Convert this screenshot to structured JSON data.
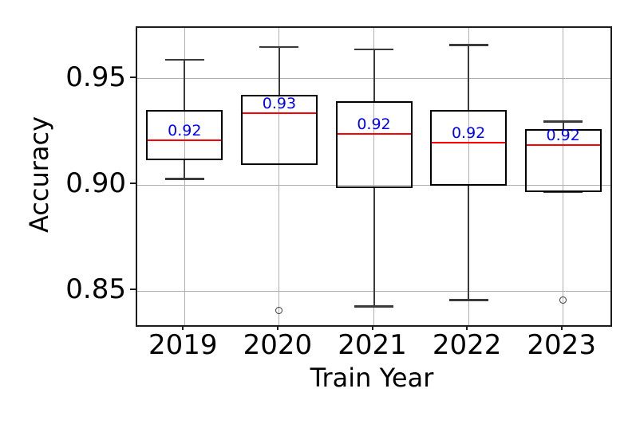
{
  "chart_data": {
    "type": "boxplot",
    "title": "",
    "xlabel": "Train Year",
    "ylabel": "Accuracy",
    "categories": [
      "2019",
      "2020",
      "2021",
      "2022",
      "2023"
    ],
    "ylim": [
      0.834,
      0.974
    ],
    "yticks": [
      {
        "value": 0.85,
        "label": "0.85"
      },
      {
        "value": 0.9,
        "label": "0.90"
      },
      {
        "value": 0.95,
        "label": "0.95"
      }
    ],
    "grid": true,
    "legend": "none",
    "colors": {
      "box_edge": "#000000",
      "median_line": "#ff0000",
      "median_label": "#0000ff",
      "whisker": "#3a3a3a",
      "gridline": "#b0b0b0",
      "spine": "#1c1c1c",
      "tick_label": "#000000",
      "background": "#ffffff"
    },
    "series": [
      {
        "category": "2019",
        "whisker_low": 0.903,
        "q1": 0.912,
        "median": 0.921,
        "q3": 0.935,
        "whisker_high": 0.959,
        "median_label": "0.92",
        "outliers": []
      },
      {
        "category": "2020",
        "whisker_low": 0.91,
        "q1": 0.91,
        "median": 0.934,
        "q3": 0.942,
        "whisker_high": 0.965,
        "median_label": "0.93",
        "outliers": [
          0.841
        ]
      },
      {
        "category": "2021",
        "whisker_low": 0.843,
        "q1": 0.899,
        "median": 0.924,
        "q3": 0.939,
        "whisker_high": 0.964,
        "median_label": "0.92",
        "outliers": []
      },
      {
        "category": "2022",
        "whisker_low": 0.846,
        "q1": 0.9,
        "median": 0.92,
        "q3": 0.935,
        "whisker_high": 0.966,
        "median_label": "0.92",
        "outliers": []
      },
      {
        "category": "2023",
        "whisker_low": 0.897,
        "q1": 0.897,
        "median": 0.919,
        "q3": 0.926,
        "whisker_high": 0.93,
        "median_label": "0.92",
        "outliers": [
          0.846
        ]
      }
    ]
  }
}
